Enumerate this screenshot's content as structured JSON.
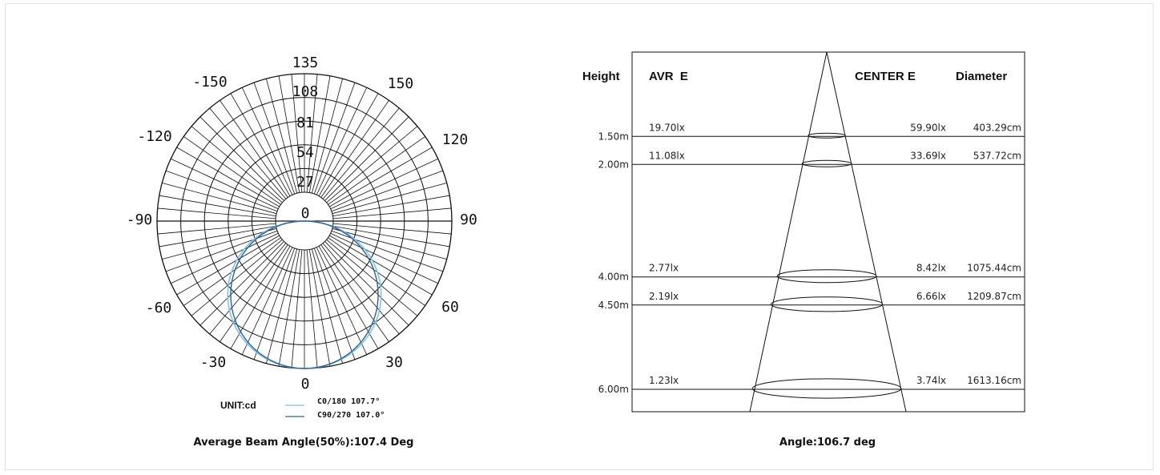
{
  "colors": {
    "c0_180": "#7cc4e6",
    "c90_270": "#2f5f9a",
    "grid": "#111111"
  },
  "chart_data": [
    {
      "type": "polar",
      "unit_label": "UNIT:cd",
      "angle_labels": [
        "135",
        "-150",
        "150",
        "-120",
        "120",
        "-90",
        "90",
        "-60",
        "60",
        "-30",
        "30",
        "0"
      ],
      "ring_labels": [
        "108",
        "81",
        "54",
        "27",
        "0"
      ],
      "ring_values": [
        27,
        54,
        81,
        108,
        135
      ],
      "rmax": 135,
      "series": [
        {
          "name": "C0/180 107.7°",
          "color": "#7cc4e6",
          "peak_cd": 135,
          "beam_angle_deg": 107.7
        },
        {
          "name": "C90/270 107.0°",
          "color": "#2f5f9a",
          "peak_cd": 135,
          "beam_angle_deg": 107.0
        }
      ],
      "caption": "Average Beam Angle(50%):107.4 Deg"
    },
    {
      "type": "table",
      "headers": {
        "height": "Height",
        "avr": "AVR  E",
        "center": "CENTER E",
        "diameter": "Diameter"
      },
      "rows": [
        {
          "height": "1.50m",
          "avr": "19.70lx",
          "center": "59.90lx",
          "diameter": "403.29cm",
          "height_m": 1.5
        },
        {
          "height": "2.00m",
          "avr": "11.08lx",
          "center": "33.69lx",
          "diameter": "537.72cm",
          "height_m": 2.0
        },
        {
          "height": "4.00m",
          "avr": "2.77lx",
          "center": "8.42lx",
          "diameter": "1075.44cm",
          "height_m": 4.0
        },
        {
          "height": "4.50m",
          "avr": "2.19lx",
          "center": "6.66lx",
          "diameter": "1209.87cm",
          "height_m": 4.5
        },
        {
          "height": "6.00m",
          "avr": "1.23lx",
          "center": "3.74lx",
          "diameter": "1613.16cm",
          "height_m": 6.0
        }
      ],
      "caption": "Angle:106.7 deg"
    }
  ]
}
